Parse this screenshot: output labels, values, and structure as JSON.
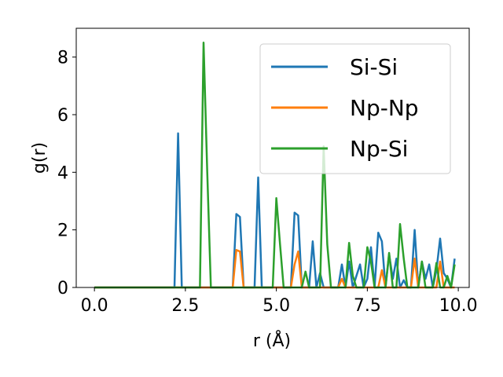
{
  "chart_data": {
    "type": "line",
    "title": "",
    "xlabel": "r (Å)",
    "ylabel": "g(r)",
    "xlim": [
      -0.5,
      10.3
    ],
    "ylim": [
      0,
      9
    ],
    "xticks": [
      0.0,
      2.5,
      5.0,
      7.5,
      10.0
    ],
    "xtick_labels": [
      "0.0",
      "2.5",
      "5.0",
      "7.5",
      "10.0"
    ],
    "yticks": [
      0,
      2,
      4,
      6,
      8
    ],
    "ytick_labels": [
      "0",
      "2",
      "4",
      "6",
      "8"
    ],
    "grid": false,
    "legend_position": "top-right",
    "series": [
      {
        "name": "Si-Si",
        "color": "#1f77b4",
        "points": [
          [
            0.0,
            0
          ],
          [
            2.2,
            0
          ],
          [
            2.3,
            5.35
          ],
          [
            2.4,
            0
          ],
          [
            3.8,
            0
          ],
          [
            3.9,
            2.55
          ],
          [
            4.0,
            2.45
          ],
          [
            4.1,
            0
          ],
          [
            4.4,
            0
          ],
          [
            4.5,
            3.82
          ],
          [
            4.6,
            0
          ],
          [
            5.4,
            0
          ],
          [
            5.5,
            2.6
          ],
          [
            5.6,
            2.5
          ],
          [
            5.7,
            0
          ],
          [
            5.9,
            0
          ],
          [
            6.0,
            1.6
          ],
          [
            6.1,
            0
          ],
          [
            6.2,
            0.5
          ],
          [
            6.3,
            0
          ],
          [
            6.7,
            0
          ],
          [
            6.8,
            0.8
          ],
          [
            6.9,
            0
          ],
          [
            7.0,
            0.9
          ],
          [
            7.1,
            0
          ],
          [
            7.2,
            0.4
          ],
          [
            7.3,
            0.8
          ],
          [
            7.4,
            0
          ],
          [
            7.5,
            0.3
          ],
          [
            7.6,
            1.4
          ],
          [
            7.7,
            0
          ],
          [
            7.8,
            1.9
          ],
          [
            7.9,
            1.6
          ],
          [
            8.0,
            0
          ],
          [
            8.1,
            1.15
          ],
          [
            8.2,
            0.3
          ],
          [
            8.3,
            1.0
          ],
          [
            8.4,
            0
          ],
          [
            8.5,
            0.25
          ],
          [
            8.6,
            0
          ],
          [
            8.7,
            0
          ],
          [
            8.8,
            2.0
          ],
          [
            8.9,
            0
          ],
          [
            9.0,
            0.9
          ],
          [
            9.1,
            0.3
          ],
          [
            9.2,
            0.8
          ],
          [
            9.3,
            0
          ],
          [
            9.4,
            0.6
          ],
          [
            9.5,
            1.7
          ],
          [
            9.6,
            0.5
          ],
          [
            9.7,
            0.3
          ],
          [
            9.8,
            0
          ],
          [
            9.9,
            1.0
          ]
        ]
      },
      {
        "name": "Np-Np",
        "color": "#ff7f0e",
        "points": [
          [
            0.0,
            0
          ],
          [
            3.8,
            0
          ],
          [
            3.9,
            1.3
          ],
          [
            4.0,
            1.25
          ],
          [
            4.1,
            0
          ],
          [
            5.4,
            0
          ],
          [
            5.5,
            0.8
          ],
          [
            5.6,
            1.25
          ],
          [
            5.7,
            0
          ],
          [
            6.7,
            0
          ],
          [
            6.8,
            0.3
          ],
          [
            6.9,
            0
          ],
          [
            7.8,
            0
          ],
          [
            7.9,
            0.6
          ],
          [
            8.0,
            0
          ],
          [
            8.7,
            0
          ],
          [
            8.8,
            1.0
          ],
          [
            8.9,
            0
          ],
          [
            9.4,
            0
          ],
          [
            9.5,
            0.9
          ],
          [
            9.6,
            0
          ],
          [
            9.9,
            0
          ]
        ]
      },
      {
        "name": "Np-Si",
        "color": "#2ca02c",
        "points": [
          [
            0.0,
            0
          ],
          [
            2.9,
            0
          ],
          [
            3.0,
            8.5
          ],
          [
            3.1,
            4.0
          ],
          [
            3.2,
            0
          ],
          [
            4.9,
            0
          ],
          [
            5.0,
            3.1
          ],
          [
            5.1,
            1.5
          ],
          [
            5.2,
            0
          ],
          [
            5.7,
            0
          ],
          [
            5.8,
            0.55
          ],
          [
            5.9,
            0
          ],
          [
            6.2,
            0
          ],
          [
            6.3,
            4.9
          ],
          [
            6.4,
            1.5
          ],
          [
            6.5,
            0
          ],
          [
            6.9,
            0
          ],
          [
            7.0,
            1.55
          ],
          [
            7.1,
            0.4
          ],
          [
            7.2,
            0
          ],
          [
            7.4,
            0
          ],
          [
            7.5,
            1.4
          ],
          [
            7.6,
            0.9
          ],
          [
            7.7,
            0
          ],
          [
            8.0,
            0
          ],
          [
            8.1,
            1.2
          ],
          [
            8.2,
            0
          ],
          [
            8.3,
            0
          ],
          [
            8.4,
            2.2
          ],
          [
            8.5,
            1.0
          ],
          [
            8.6,
            0
          ],
          [
            8.9,
            0
          ],
          [
            9.0,
            0.9
          ],
          [
            9.1,
            0
          ],
          [
            9.3,
            0
          ],
          [
            9.4,
            0.85
          ],
          [
            9.5,
            0
          ],
          [
            9.6,
            0
          ],
          [
            9.7,
            0.4
          ],
          [
            9.8,
            0
          ],
          [
            9.9,
            0.8
          ]
        ]
      }
    ]
  }
}
